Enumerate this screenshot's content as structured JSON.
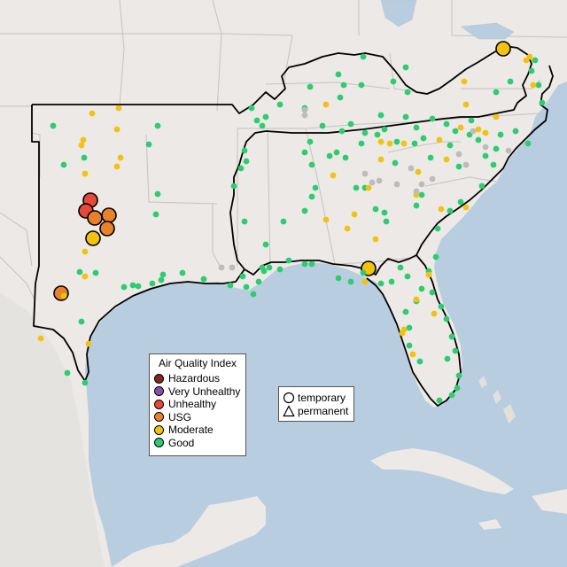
{
  "map": {
    "region": "Southern and southeastern United States",
    "colors": {
      "ocean": "#b8cde0",
      "land": "#ece9e6",
      "land_dark": "#e2dfdc",
      "border_lines": "#c4c4c4",
      "highlight_outline": "#000000"
    }
  },
  "legend": {
    "title": "Air Quality Index",
    "items": [
      {
        "label": "Hazardous",
        "color": "#7e2a1f"
      },
      {
        "label": "Very Unhealthy",
        "color": "#8e4fa8"
      },
      {
        "label": "Unhealthy",
        "color": "#e8483a"
      },
      {
        "label": "USG",
        "color": "#e8822a"
      },
      {
        "label": "Moderate",
        "color": "#f2c20e"
      },
      {
        "label": "Good",
        "color": "#2ecc71"
      }
    ]
  },
  "monitor_type_legend": {
    "items": [
      {
        "label": "temporary",
        "shape": "circle-icon"
      },
      {
        "label": "permanent",
        "shape": "triangle-icon"
      }
    ]
  },
  "monitor_colors": {
    "good": "#2ecc71",
    "moderate": "#f2c20e",
    "usg": "#e8822a",
    "unhealthy": "#e8483a",
    "nodata": "#bcbcbc"
  }
}
